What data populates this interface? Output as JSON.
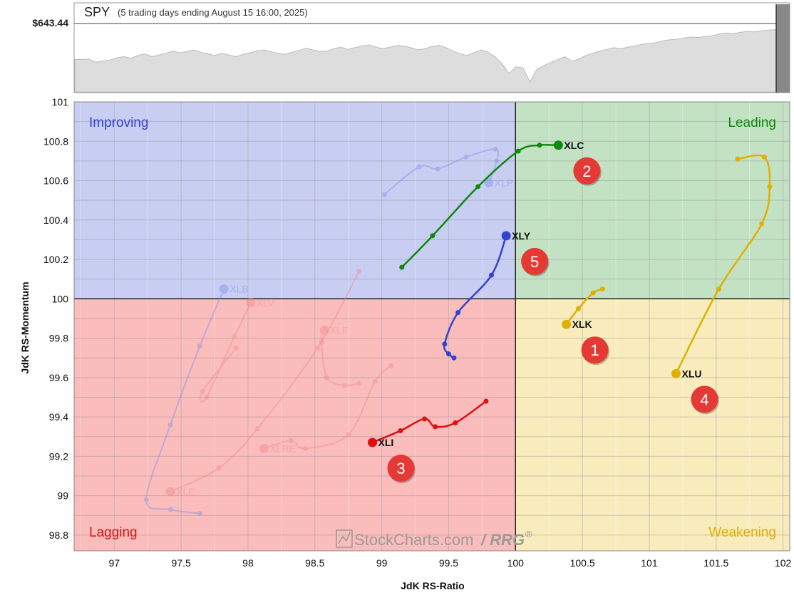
{
  "header": {
    "symbol": "SPY",
    "period": "(5 trading days ending August 15 16:00, 2025)",
    "price": "$643.44"
  },
  "quadrants": {
    "improving": "Improving",
    "leading": "Leading",
    "lagging": "Lagging",
    "weakening": "Weakening"
  },
  "watermark": {
    "brand": "StockCharts.com",
    "suffix": "/ RRG",
    "mark": "®"
  },
  "colors": {
    "improving": "#c8cdf2",
    "leading": "#c3e2c3",
    "lagging": "#fbbcbc",
    "weakening": "#f8ecbd",
    "improving_text": "#3344cc",
    "leading_text": "#118811",
    "lagging_text": "#dd1111",
    "weakening_text": "#e0b000"
  },
  "chart_data": {
    "type": "scatter",
    "xlabel": "JdK RS-Ratio",
    "ylabel": "JdK RS-Momentum",
    "xlim": [
      96.7,
      102.05
    ],
    "ylim": [
      98.72,
      101.0
    ],
    "xticks": [
      97,
      97.5,
      98,
      98.5,
      99,
      99.5,
      100,
      100.5,
      101,
      101.5,
      102
    ],
    "yticks": [
      98.8,
      99,
      99.2,
      99.4,
      99.6,
      99.8,
      100,
      100.2,
      100.4,
      100.6,
      100.8,
      101
    ],
    "xtick_labels": [
      "97",
      "97.5",
      "98",
      "98.5",
      "99",
      "99.5",
      "100",
      "100.5",
      "101",
      "101.5",
      "102"
    ],
    "ytick_labels": [
      "98.8",
      "99",
      "99.2",
      "99.4",
      "99.6",
      "99.8",
      "100",
      "100.2",
      "100.4",
      "100.6",
      "100.8",
      "101"
    ],
    "center": [
      100,
      100
    ],
    "grid": true,
    "series": [
      {
        "name": "XLC",
        "color": "#118811",
        "faded": false,
        "badge": "2",
        "points": [
          [
            99.15,
            100.16
          ],
          [
            99.38,
            100.32
          ],
          [
            99.72,
            100.57
          ],
          [
            100.02,
            100.75
          ],
          [
            100.18,
            100.78
          ],
          [
            100.32,
            100.78
          ]
        ]
      },
      {
        "name": "XLY",
        "color": "#3344cc",
        "faded": false,
        "badge": "5",
        "points": [
          [
            99.54,
            99.7
          ],
          [
            99.5,
            99.72
          ],
          [
            99.47,
            99.77
          ],
          [
            99.57,
            99.93
          ],
          [
            99.82,
            100.12
          ],
          [
            99.93,
            100.32
          ]
        ]
      },
      {
        "name": "XLK",
        "color": "#e0b000",
        "faded": false,
        "badge": "1",
        "points": [
          [
            100.65,
            100.05
          ],
          [
            100.58,
            100.03
          ],
          [
            100.47,
            99.95
          ],
          [
            100.38,
            99.87
          ]
        ]
      },
      {
        "name": "XLU",
        "color": "#e0b000",
        "faded": false,
        "badge": "4",
        "points": [
          [
            101.66,
            100.71
          ],
          [
            101.86,
            100.72
          ],
          [
            101.9,
            100.57
          ],
          [
            101.84,
            100.38
          ],
          [
            101.52,
            100.05
          ],
          [
            101.2,
            99.62
          ]
        ]
      },
      {
        "name": "XLI",
        "color": "#dd1111",
        "faded": false,
        "badge": "3",
        "points": [
          [
            99.78,
            99.48
          ],
          [
            99.55,
            99.37
          ],
          [
            99.4,
            99.35
          ],
          [
            99.32,
            99.39
          ],
          [
            99.14,
            99.33
          ],
          [
            98.93,
            99.27
          ]
        ]
      },
      {
        "name": "XLP",
        "color": "#8090e8",
        "faded": true,
        "points": [
          [
            99.02,
            100.53
          ],
          [
            99.28,
            100.67
          ],
          [
            99.42,
            100.66
          ],
          [
            99.63,
            100.72
          ],
          [
            99.85,
            100.76
          ],
          [
            99.86,
            100.7
          ],
          [
            99.8,
            100.59
          ]
        ]
      },
      {
        "name": "XLB",
        "color": "#8090e8",
        "faded": true,
        "points": [
          [
            97.64,
            98.91
          ],
          [
            97.42,
            98.93
          ],
          [
            97.24,
            98.98
          ],
          [
            97.42,
            99.36
          ],
          [
            97.64,
            99.76
          ],
          [
            97.82,
            100.05
          ]
        ]
      },
      {
        "name": "XLV",
        "color": "#f08a8a",
        "faded": true,
        "points": [
          [
            97.91,
            99.75
          ],
          [
            97.66,
            99.53
          ],
          [
            97.69,
            99.5
          ],
          [
            97.9,
            99.81
          ],
          [
            98.02,
            99.98
          ]
        ]
      },
      {
        "name": "XLF",
        "color": "#f08a8a",
        "faded": true,
        "points": [
          [
            98.83,
            99.57
          ],
          [
            98.72,
            99.56
          ],
          [
            98.59,
            99.6
          ],
          [
            98.55,
            99.78
          ],
          [
            98.57,
            99.84
          ]
        ]
      },
      {
        "name": "XLRE",
        "color": "#f08a8a",
        "faded": true,
        "points": [
          [
            99.07,
            99.66
          ],
          [
            98.95,
            99.58
          ],
          [
            98.75,
            99.31
          ],
          [
            98.43,
            99.24
          ],
          [
            98.32,
            99.28
          ],
          [
            98.12,
            99.24
          ]
        ]
      },
      {
        "name": "XLE",
        "color": "#f08a8a",
        "faded": true,
        "points": [
          [
            98.83,
            100.14
          ],
          [
            98.52,
            99.75
          ],
          [
            98.07,
            99.34
          ],
          [
            97.78,
            99.14
          ],
          [
            97.42,
            99.02
          ]
        ]
      }
    ]
  },
  "spy_data": {
    "last": 643.44,
    "values": [
      0.55,
      0.55,
      0.54,
      0.6,
      0.58,
      0.56,
      0.52,
      0.5,
      0.53,
      0.48,
      0.45,
      0.5,
      0.47,
      0.44,
      0.4,
      0.43,
      0.41,
      0.38,
      0.42,
      0.45,
      0.48,
      0.44,
      0.47,
      0.5,
      0.46,
      0.43,
      0.4,
      0.38,
      0.41,
      0.44,
      0.46,
      0.42,
      0.39,
      0.35,
      0.38,
      0.41,
      0.4,
      0.36,
      0.33,
      0.37,
      0.34,
      0.31,
      0.29,
      0.33,
      0.36,
      0.33,
      0.3,
      0.31,
      0.34,
      0.38,
      0.36,
      0.32,
      0.3,
      0.34,
      0.4,
      0.45,
      0.48,
      0.43,
      0.38,
      0.42,
      0.5,
      0.62,
      0.8,
      0.68,
      0.7,
      0.95,
      0.72,
      0.66,
      0.6,
      0.55,
      0.5,
      0.58,
      0.54,
      0.48,
      0.44,
      0.4,
      0.37,
      0.34,
      0.36,
      0.33,
      0.31,
      0.28,
      0.27,
      0.25,
      0.22,
      0.2,
      0.19,
      0.17,
      0.15,
      0.16,
      0.14,
      0.13,
      0.1,
      0.08,
      0.09,
      0.07,
      0.05,
      0.06,
      0.04,
      0.03,
      0.02,
      0.03,
      0.01
    ]
  }
}
